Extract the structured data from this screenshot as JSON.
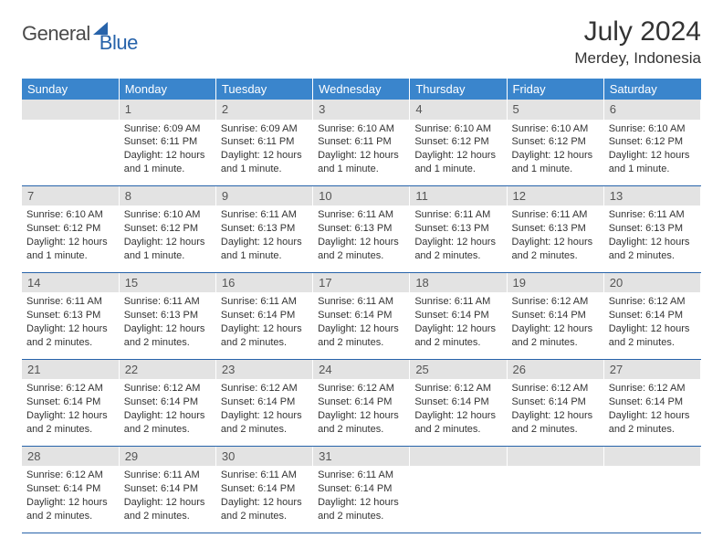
{
  "brand": {
    "general": "General",
    "blue": "Blue"
  },
  "header": {
    "month_title": "July 2024",
    "location": "Merdey, Indonesia"
  },
  "colors": {
    "header_bg": "#3a85cc",
    "header_text": "#ffffff",
    "daynum_bg": "#e3e3e3",
    "rule": "#2763aa",
    "brand_blue": "#2763aa"
  },
  "weekdays": [
    "Sunday",
    "Monday",
    "Tuesday",
    "Wednesday",
    "Thursday",
    "Friday",
    "Saturday"
  ],
  "weeks": [
    [
      null,
      {
        "n": "1",
        "sr": "Sunrise: 6:09 AM",
        "ss": "Sunset: 6:11 PM",
        "dl": "Daylight: 12 hours and 1 minute."
      },
      {
        "n": "2",
        "sr": "Sunrise: 6:09 AM",
        "ss": "Sunset: 6:11 PM",
        "dl": "Daylight: 12 hours and 1 minute."
      },
      {
        "n": "3",
        "sr": "Sunrise: 6:10 AM",
        "ss": "Sunset: 6:11 PM",
        "dl": "Daylight: 12 hours and 1 minute."
      },
      {
        "n": "4",
        "sr": "Sunrise: 6:10 AM",
        "ss": "Sunset: 6:12 PM",
        "dl": "Daylight: 12 hours and 1 minute."
      },
      {
        "n": "5",
        "sr": "Sunrise: 6:10 AM",
        "ss": "Sunset: 6:12 PM",
        "dl": "Daylight: 12 hours and 1 minute."
      },
      {
        "n": "6",
        "sr": "Sunrise: 6:10 AM",
        "ss": "Sunset: 6:12 PM",
        "dl": "Daylight: 12 hours and 1 minute."
      }
    ],
    [
      {
        "n": "7",
        "sr": "Sunrise: 6:10 AM",
        "ss": "Sunset: 6:12 PM",
        "dl": "Daylight: 12 hours and 1 minute."
      },
      {
        "n": "8",
        "sr": "Sunrise: 6:10 AM",
        "ss": "Sunset: 6:12 PM",
        "dl": "Daylight: 12 hours and 1 minute."
      },
      {
        "n": "9",
        "sr": "Sunrise: 6:11 AM",
        "ss": "Sunset: 6:13 PM",
        "dl": "Daylight: 12 hours and 1 minute."
      },
      {
        "n": "10",
        "sr": "Sunrise: 6:11 AM",
        "ss": "Sunset: 6:13 PM",
        "dl": "Daylight: 12 hours and 2 minutes."
      },
      {
        "n": "11",
        "sr": "Sunrise: 6:11 AM",
        "ss": "Sunset: 6:13 PM",
        "dl": "Daylight: 12 hours and 2 minutes."
      },
      {
        "n": "12",
        "sr": "Sunrise: 6:11 AM",
        "ss": "Sunset: 6:13 PM",
        "dl": "Daylight: 12 hours and 2 minutes."
      },
      {
        "n": "13",
        "sr": "Sunrise: 6:11 AM",
        "ss": "Sunset: 6:13 PM",
        "dl": "Daylight: 12 hours and 2 minutes."
      }
    ],
    [
      {
        "n": "14",
        "sr": "Sunrise: 6:11 AM",
        "ss": "Sunset: 6:13 PM",
        "dl": "Daylight: 12 hours and 2 minutes."
      },
      {
        "n": "15",
        "sr": "Sunrise: 6:11 AM",
        "ss": "Sunset: 6:13 PM",
        "dl": "Daylight: 12 hours and 2 minutes."
      },
      {
        "n": "16",
        "sr": "Sunrise: 6:11 AM",
        "ss": "Sunset: 6:14 PM",
        "dl": "Daylight: 12 hours and 2 minutes."
      },
      {
        "n": "17",
        "sr": "Sunrise: 6:11 AM",
        "ss": "Sunset: 6:14 PM",
        "dl": "Daylight: 12 hours and 2 minutes."
      },
      {
        "n": "18",
        "sr": "Sunrise: 6:11 AM",
        "ss": "Sunset: 6:14 PM",
        "dl": "Daylight: 12 hours and 2 minutes."
      },
      {
        "n": "19",
        "sr": "Sunrise: 6:12 AM",
        "ss": "Sunset: 6:14 PM",
        "dl": "Daylight: 12 hours and 2 minutes."
      },
      {
        "n": "20",
        "sr": "Sunrise: 6:12 AM",
        "ss": "Sunset: 6:14 PM",
        "dl": "Daylight: 12 hours and 2 minutes."
      }
    ],
    [
      {
        "n": "21",
        "sr": "Sunrise: 6:12 AM",
        "ss": "Sunset: 6:14 PM",
        "dl": "Daylight: 12 hours and 2 minutes."
      },
      {
        "n": "22",
        "sr": "Sunrise: 6:12 AM",
        "ss": "Sunset: 6:14 PM",
        "dl": "Daylight: 12 hours and 2 minutes."
      },
      {
        "n": "23",
        "sr": "Sunrise: 6:12 AM",
        "ss": "Sunset: 6:14 PM",
        "dl": "Daylight: 12 hours and 2 minutes."
      },
      {
        "n": "24",
        "sr": "Sunrise: 6:12 AM",
        "ss": "Sunset: 6:14 PM",
        "dl": "Daylight: 12 hours and 2 minutes."
      },
      {
        "n": "25",
        "sr": "Sunrise: 6:12 AM",
        "ss": "Sunset: 6:14 PM",
        "dl": "Daylight: 12 hours and 2 minutes."
      },
      {
        "n": "26",
        "sr": "Sunrise: 6:12 AM",
        "ss": "Sunset: 6:14 PM",
        "dl": "Daylight: 12 hours and 2 minutes."
      },
      {
        "n": "27",
        "sr": "Sunrise: 6:12 AM",
        "ss": "Sunset: 6:14 PM",
        "dl": "Daylight: 12 hours and 2 minutes."
      }
    ],
    [
      {
        "n": "28",
        "sr": "Sunrise: 6:12 AM",
        "ss": "Sunset: 6:14 PM",
        "dl": "Daylight: 12 hours and 2 minutes."
      },
      {
        "n": "29",
        "sr": "Sunrise: 6:11 AM",
        "ss": "Sunset: 6:14 PM",
        "dl": "Daylight: 12 hours and 2 minutes."
      },
      {
        "n": "30",
        "sr": "Sunrise: 6:11 AM",
        "ss": "Sunset: 6:14 PM",
        "dl": "Daylight: 12 hours and 2 minutes."
      },
      {
        "n": "31",
        "sr": "Sunrise: 6:11 AM",
        "ss": "Sunset: 6:14 PM",
        "dl": "Daylight: 12 hours and 2 minutes."
      },
      null,
      null,
      null
    ]
  ]
}
